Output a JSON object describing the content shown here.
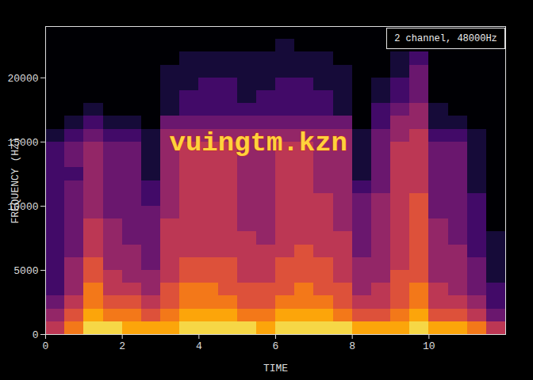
{
  "chart_data": {
    "type": "heatmap",
    "x_label": "TIME",
    "y_label": "FREQUENCY (HZ)",
    "info_box": "2 channel, 48000Hz",
    "xlim": [
      0,
      12
    ],
    "xticks": [
      0,
      2,
      4,
      6,
      8,
      10
    ],
    "ylim": [
      0,
      24000
    ],
    "yticks": [
      0,
      5000,
      10000,
      15000,
      20000
    ],
    "zlim": [
      0,
      10
    ],
    "time_bins": [
      0,
      0.5,
      1,
      1.5,
      2,
      2.5,
      3,
      3.5,
      4,
      4.5,
      5,
      5.5,
      6,
      6.5,
      7,
      7.5,
      8,
      8.5,
      9,
      9.5,
      10,
      10.5,
      11,
      11.5,
      12
    ],
    "frequency_bins": [
      0,
      1000,
      2000,
      3000,
      4000,
      5000,
      6000,
      7000,
      8000,
      9000,
      10000,
      11000,
      12000,
      13000,
      14000,
      15000,
      16000,
      17000,
      18000,
      19000,
      20000,
      21000,
      22000,
      23000,
      24000
    ],
    "cells": [
      [
        5,
        7,
        9,
        9,
        8,
        8,
        8,
        9,
        9,
        9,
        9,
        8,
        9,
        9,
        9,
        9,
        8,
        8,
        8,
        9,
        8,
        8,
        7,
        5
      ],
      [
        4,
        6,
        8,
        7,
        7,
        6,
        7,
        8,
        8,
        8,
        7,
        7,
        8,
        8,
        8,
        7,
        6,
        6,
        7,
        8,
        6,
        6,
        5,
        3
      ],
      [
        3,
        5,
        7,
        6,
        6,
        5,
        6,
        7,
        7,
        7,
        6,
        6,
        7,
        7,
        7,
        6,
        5,
        5,
        6,
        7,
        5,
        5,
        4,
        2
      ],
      [
        2,
        4,
        7,
        5,
        5,
        4,
        6,
        7,
        7,
        6,
        6,
        6,
        6,
        7,
        6,
        6,
        4,
        5,
        6,
        7,
        5,
        4,
        3,
        2
      ],
      [
        2,
        4,
        6,
        5,
        4,
        4,
        5,
        6,
        6,
        6,
        5,
        5,
        6,
        6,
        6,
        5,
        4,
        4,
        6,
        6,
        4,
        4,
        3,
        1
      ],
      [
        2,
        4,
        6,
        4,
        4,
        3,
        5,
        6,
        6,
        6,
        5,
        5,
        6,
        6,
        6,
        5,
        4,
        4,
        5,
        6,
        4,
        4,
        3,
        1
      ],
      [
        2,
        3,
        5,
        4,
        4,
        3,
        5,
        5,
        5,
        5,
        5,
        5,
        5,
        6,
        5,
        5,
        3,
        4,
        5,
        6,
        4,
        4,
        2,
        1
      ],
      [
        2,
        3,
        5,
        4,
        3,
        3,
        5,
        5,
        5,
        5,
        5,
        4,
        5,
        5,
        5,
        5,
        3,
        4,
        5,
        6,
        4,
        3,
        2,
        1
      ],
      [
        2,
        3,
        5,
        4,
        3,
        3,
        5,
        5,
        5,
        5,
        4,
        4,
        5,
        5,
        5,
        4,
        3,
        4,
        5,
        6,
        4,
        3,
        2,
        0
      ],
      [
        2,
        3,
        4,
        3,
        3,
        3,
        4,
        5,
        5,
        5,
        4,
        4,
        5,
        5,
        5,
        4,
        3,
        4,
        5,
        6,
        3,
        3,
        2,
        0
      ],
      [
        2,
        3,
        4,
        3,
        3,
        2,
        4,
        5,
        5,
        5,
        4,
        4,
        5,
        5,
        5,
        4,
        3,
        4,
        5,
        6,
        3,
        3,
        2,
        0
      ],
      [
        2,
        3,
        4,
        3,
        3,
        2,
        4,
        5,
        5,
        5,
        4,
        4,
        5,
        5,
        4,
        4,
        2,
        3,
        5,
        5,
        3,
        3,
        1,
        0
      ],
      [
        2,
        2,
        4,
        3,
        3,
        1,
        4,
        5,
        5,
        5,
        4,
        4,
        5,
        5,
        4,
        4,
        1,
        3,
        5,
        5,
        3,
        3,
        1,
        0
      ],
      [
        2,
        3,
        4,
        3,
        3,
        1,
        4,
        5,
        5,
        5,
        4,
        4,
        5,
        5,
        4,
        4,
        1,
        3,
        5,
        5,
        3,
        3,
        1,
        0
      ],
      [
        2,
        3,
        4,
        3,
        3,
        1,
        4,
        5,
        5,
        5,
        4,
        4,
        5,
        5,
        4,
        4,
        1,
        3,
        5,
        5,
        3,
        3,
        1,
        0
      ],
      [
        1,
        2,
        3,
        2,
        2,
        1,
        4,
        4,
        4,
        4,
        4,
        4,
        4,
        4,
        4,
        4,
        1,
        3,
        4,
        5,
        2,
        2,
        1,
        0
      ],
      [
        0,
        1,
        2,
        1,
        1,
        0,
        3,
        3,
        3,
        3,
        3,
        3,
        3,
        3,
        3,
        3,
        0,
        2,
        4,
        4,
        1,
        1,
        0,
        0
      ],
      [
        0,
        0,
        1,
        0,
        0,
        0,
        1,
        2,
        2,
        2,
        2,
        2,
        2,
        2,
        2,
        1,
        0,
        2,
        3,
        4,
        1,
        0,
        0,
        0
      ],
      [
        0,
        0,
        0,
        0,
        0,
        0,
        1,
        2,
        2,
        2,
        1,
        2,
        2,
        2,
        2,
        1,
        0,
        1,
        2,
        3,
        0,
        0,
        0,
        0
      ],
      [
        0,
        0,
        0,
        0,
        0,
        0,
        1,
        1,
        2,
        2,
        1,
        1,
        2,
        2,
        1,
        1,
        0,
        1,
        2,
        3,
        0,
        0,
        0,
        0
      ],
      [
        0,
        0,
        0,
        0,
        0,
        0,
        1,
        1,
        1,
        1,
        1,
        1,
        1,
        1,
        1,
        1,
        0,
        0,
        1,
        3,
        0,
        0,
        0,
        0
      ],
      [
        0,
        0,
        0,
        0,
        0,
        0,
        0,
        1,
        1,
        1,
        1,
        1,
        1,
        1,
        1,
        0,
        0,
        0,
        1,
        2,
        0,
        0,
        0,
        0
      ],
      [
        0,
        0,
        0,
        0,
        0,
        0,
        0,
        0,
        0,
        0,
        0,
        0,
        1,
        0,
        0,
        0,
        0,
        0,
        0,
        0,
        0,
        0,
        0,
        0
      ],
      [
        0,
        0,
        0,
        0,
        0,
        0,
        0,
        0,
        0,
        0,
        0,
        0,
        0,
        0,
        0,
        0,
        0,
        0,
        0,
        0,
        0,
        0,
        0,
        0
      ]
    ],
    "annotations": [
      {
        "text": "vuingtm.kzn",
        "x": 5.55,
        "y": 15000
      }
    ]
  }
}
